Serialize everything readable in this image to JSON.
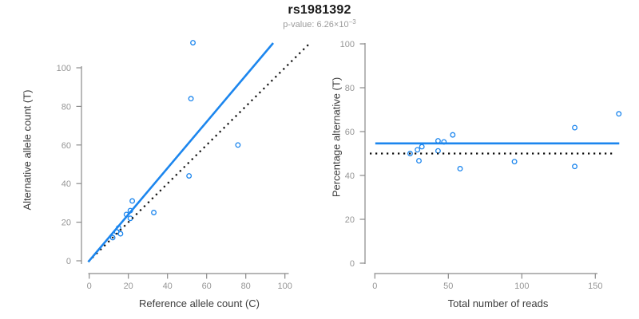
{
  "header": {
    "title": "rs1981392",
    "subtitle_prefix": "p-value: 6.26×10",
    "subtitle_exponent": "−3"
  },
  "colors": {
    "accent_blue": "#1C86EE",
    "reference_black": "#0a0a0a",
    "axis_gray": "#8a8a8a",
    "tick_label_gray": "#969696",
    "axis_title_gray": "#3d3d3d",
    "subtitle_gray": "#9b9b9b",
    "title_black": "#1a1a1a",
    "background": "#ffffff"
  },
  "chart_data": [
    {
      "type": "scatter",
      "name": "allele-counts",
      "title": "rs1981392",
      "subtitle": "p-value: 6.26×10^-3",
      "xlabel": "Reference allele count (C)",
      "ylabel": "Alternative allele count (T)",
      "xlim": [
        0,
        100
      ],
      "ylim": [
        0,
        100
      ],
      "xticks": [
        0,
        20,
        40,
        60,
        80,
        100
      ],
      "yticks": [
        0,
        20,
        40,
        60,
        80,
        100
      ],
      "grid": false,
      "legend": "none",
      "marker": "open-circle",
      "points": [
        [
          12,
          12
        ],
        [
          14,
          15
        ],
        [
          15,
          17
        ],
        [
          16,
          14
        ],
        [
          19,
          24
        ],
        [
          21,
          22
        ],
        [
          21,
          26
        ],
        [
          22,
          31
        ],
        [
          33,
          25
        ],
        [
          51,
          44
        ],
        [
          52,
          84
        ],
        [
          53,
          113
        ],
        [
          76,
          60
        ]
      ],
      "fit_line": {
        "style": "solid",
        "slope": 1.2,
        "intercept": 0,
        "x_range": [
          -0.5,
          94
        ],
        "color_ref": "accent_blue"
      },
      "identity_line": {
        "style": "dotted",
        "slope": 1.0,
        "intercept": 0,
        "x_range": [
          -0.5,
          113
        ],
        "color_ref": "reference_black"
      }
    },
    {
      "type": "scatter",
      "name": "percentage-vs-reads",
      "xlabel": "Total number of reads",
      "ylabel": "Percentage alternative (T)",
      "xlim": [
        0,
        150
      ],
      "ylim": [
        0,
        100
      ],
      "xticks": [
        0,
        50,
        100,
        150
      ],
      "yticks": [
        0,
        20,
        40,
        60,
        80,
        100
      ],
      "grid": false,
      "legend": "none",
      "marker": "open-circle",
      "points": [
        [
          24,
          50
        ],
        [
          29,
          51.7
        ],
        [
          30,
          46.7
        ],
        [
          32,
          53.1
        ],
        [
          43,
          51.2
        ],
        [
          43,
          55.8
        ],
        [
          47,
          55.3
        ],
        [
          53,
          58.5
        ],
        [
          58,
          43.1
        ],
        [
          95,
          46.3
        ],
        [
          136,
          44.1
        ],
        [
          136,
          61.8
        ],
        [
          166,
          68.1
        ]
      ],
      "mean_line": {
        "style": "solid",
        "y": 54.6,
        "x_range": [
          0.3,
          166.3
        ],
        "color_ref": "accent_blue"
      },
      "ref_line": {
        "style": "dotted",
        "y": 50,
        "x_range": [
          -3.4,
          163.5
        ],
        "color_ref": "reference_black"
      }
    }
  ]
}
